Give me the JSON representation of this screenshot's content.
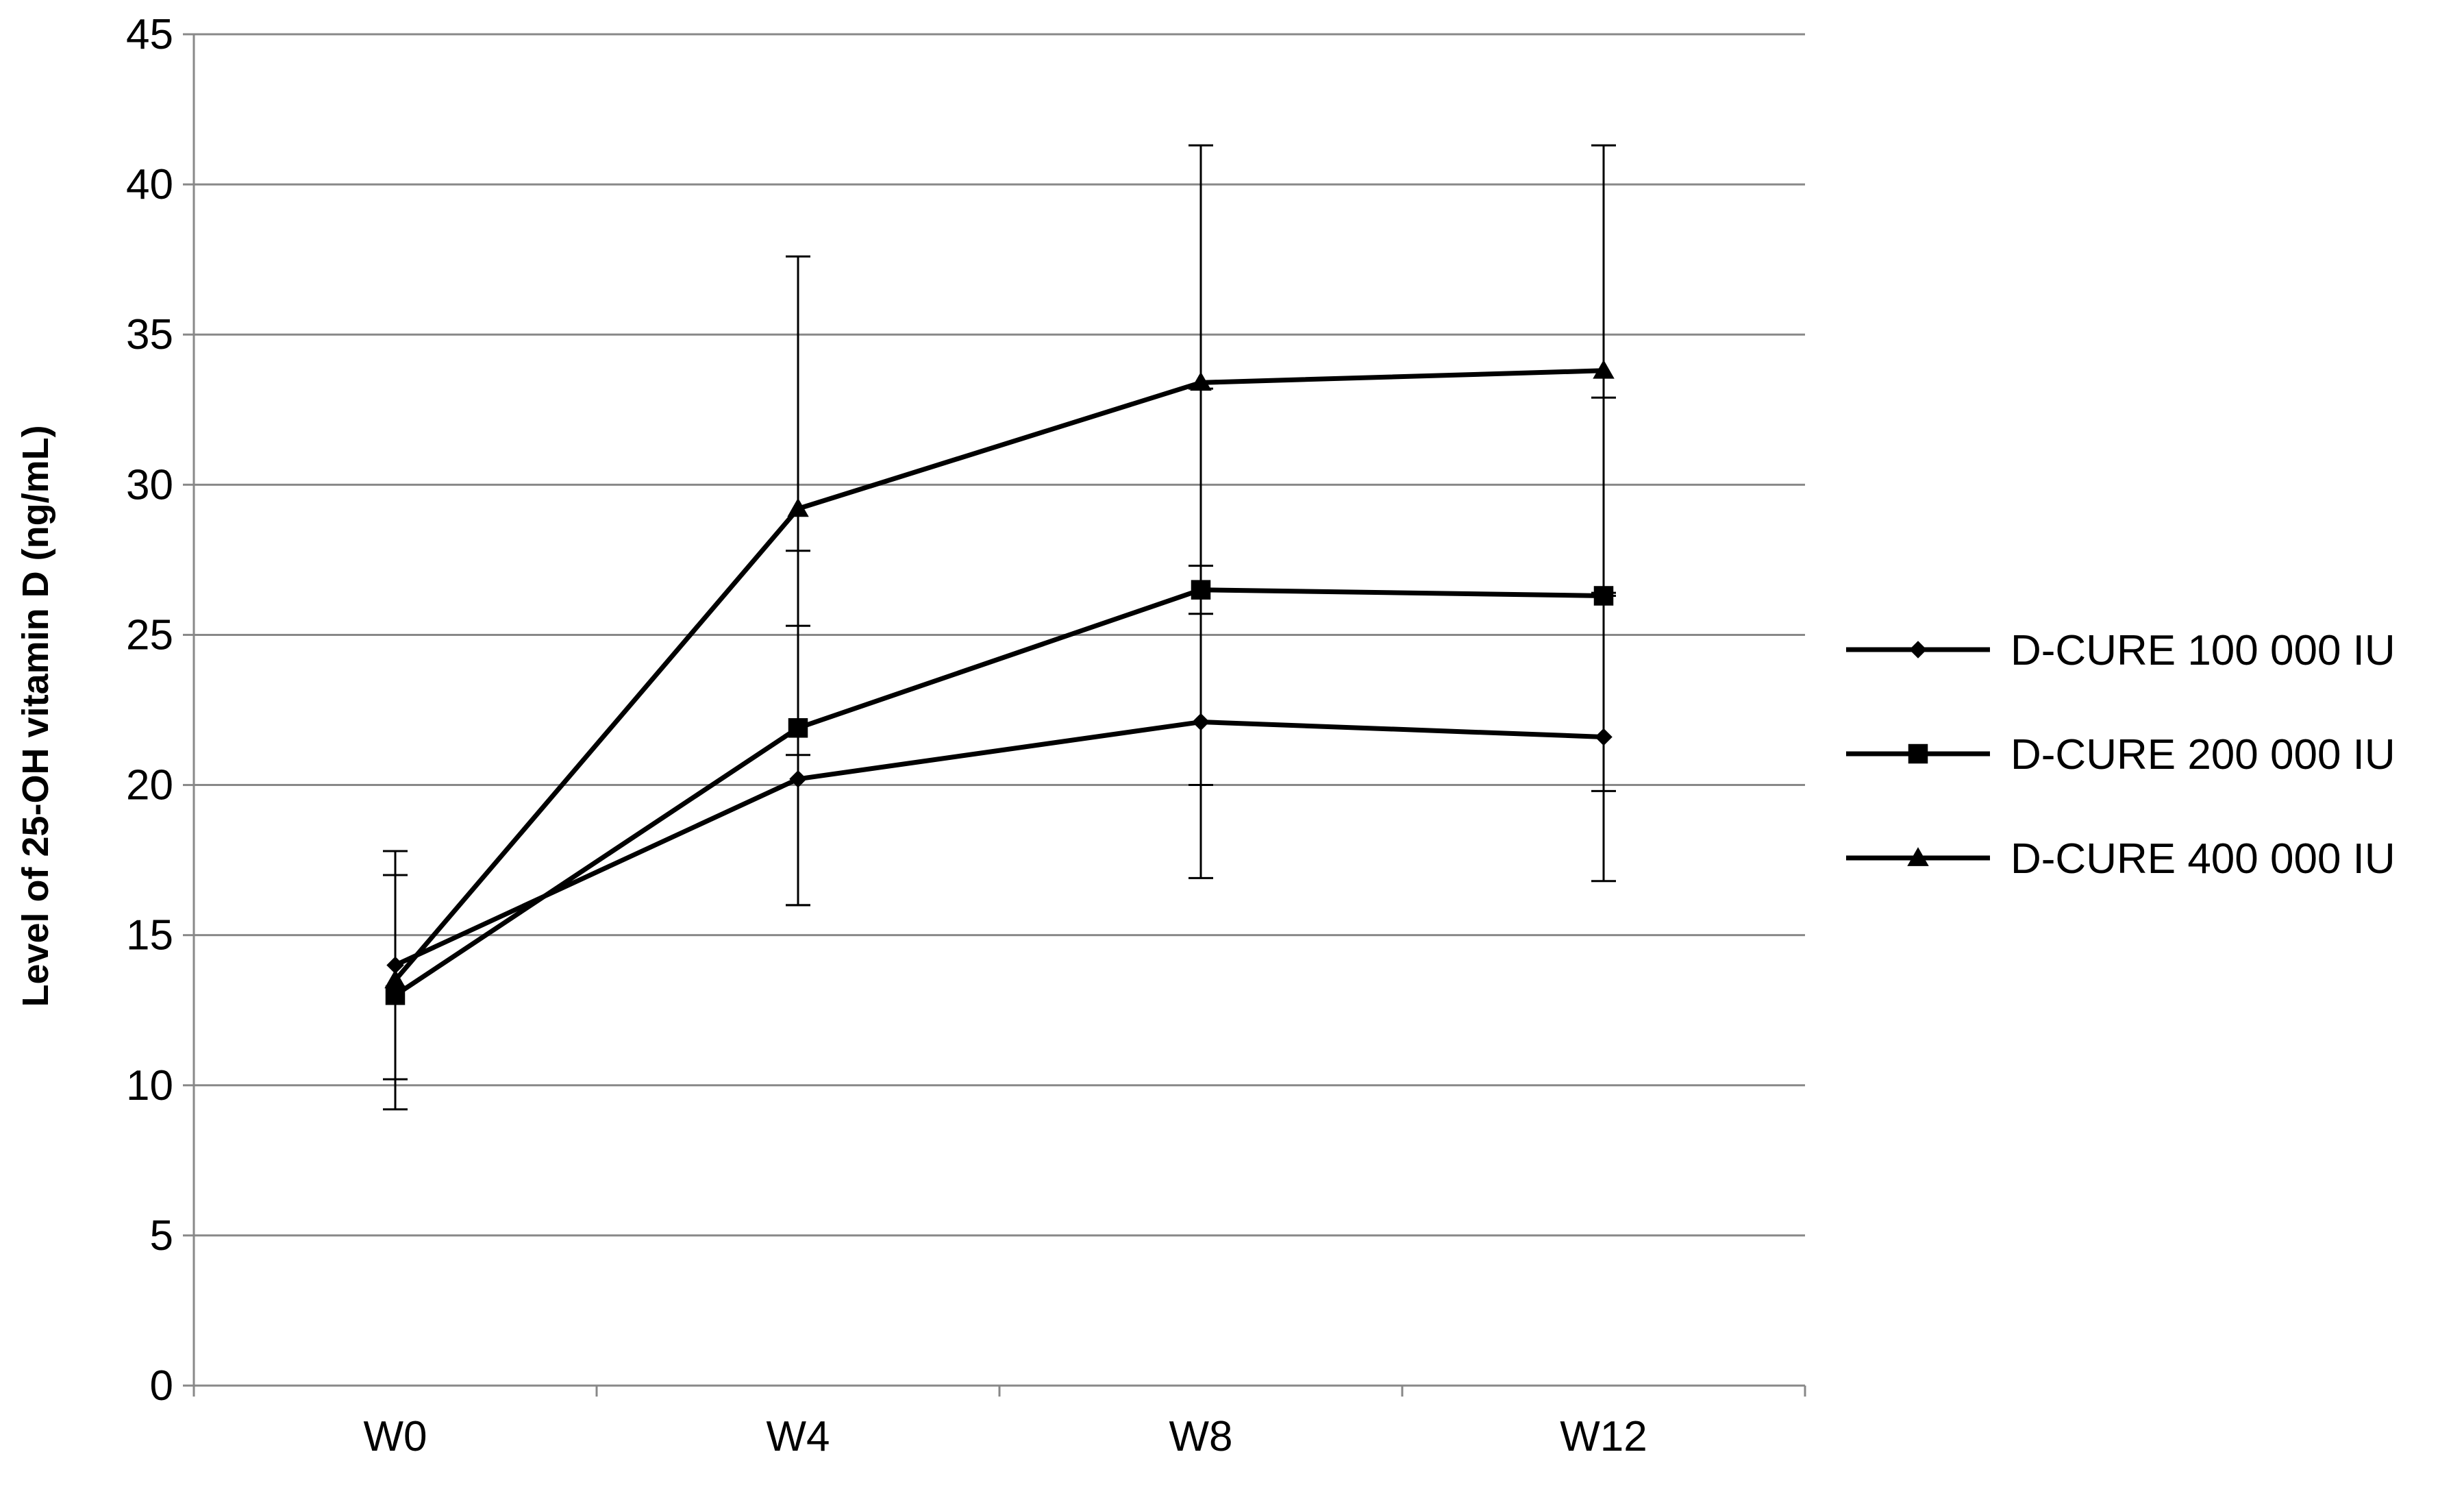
{
  "chart_data": {
    "type": "line",
    "title": "",
    "xlabel": "",
    "ylabel": "Level of 25-OH vitamin D (ng/mL)",
    "categories": [
      "W0",
      "W4",
      "W8",
      "W12"
    ],
    "ylim": [
      0,
      45
    ],
    "yticks": [
      0,
      5,
      10,
      15,
      20,
      25,
      30,
      35,
      40,
      45
    ],
    "grid": true,
    "legend_position": "right",
    "line_color": "#000000",
    "grid_color": "#888888",
    "series": [
      {
        "name": "D-CURE 100 000 IU",
        "marker": "diamond",
        "values": [
          14.0,
          20.2,
          22.1,
          21.6
        ],
        "error_low": [
          10.2,
          16.0,
          16.9,
          16.8
        ],
        "error_high": [
          17.0,
          25.3,
          27.3,
          26.4
        ]
      },
      {
        "name": "D-CURE 200 000 IU",
        "marker": "square",
        "values": [
          13.0,
          21.9,
          26.5,
          26.3
        ],
        "error_low": [
          9.2,
          16.0,
          20.0,
          19.8
        ],
        "error_high": [
          17.0,
          27.8,
          33.2,
          32.9
        ]
      },
      {
        "name": "D-CURE 400 000 IU",
        "marker": "triangle",
        "values": [
          13.5,
          29.2,
          33.4,
          33.8
        ],
        "error_low": [
          10.2,
          21.0,
          25.7,
          26.3
        ],
        "error_high": [
          17.8,
          37.6,
          41.3,
          41.3
        ]
      }
    ]
  }
}
